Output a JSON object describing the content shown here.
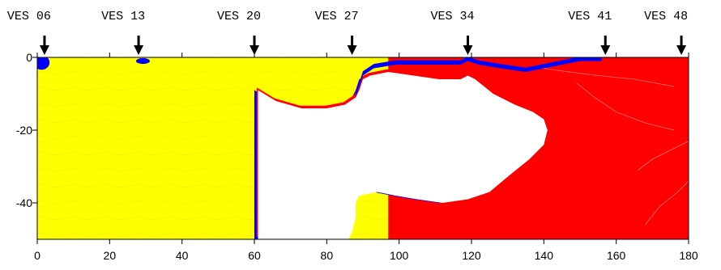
{
  "chart_data": {
    "type": "heatmap",
    "title": "",
    "xlabel": "",
    "ylabel": "",
    "xlim": [
      0,
      180
    ],
    "ylim": [
      -50,
      0
    ],
    "x_ticks": [
      0,
      20,
      40,
      60,
      80,
      100,
      120,
      140,
      160,
      180
    ],
    "y_ticks": [
      0,
      -20,
      -40
    ],
    "grid": false,
    "colors": {
      "low": "#ffff00",
      "boundary": "#0000ff",
      "high": "#ff0000",
      "blank": "#ffffff"
    },
    "soundings": [
      {
        "label": "VES 06",
        "x": 2
      },
      {
        "label": "VES 13",
        "x": 28
      },
      {
        "label": "VES 20",
        "x": 60
      },
      {
        "label": "VES 27",
        "x": 87
      },
      {
        "label": "VES 34",
        "x": 119
      },
      {
        "label": "VES 41",
        "x": 157
      },
      {
        "label": "VES 48",
        "x": 178
      }
    ],
    "zones": {
      "yellow_extent_x": [
        0,
        97
      ],
      "white_body_polygon": [
        [
          61,
          -50
        ],
        [
          61,
          -9
        ],
        [
          66,
          -12
        ],
        [
          73,
          -14
        ],
        [
          80,
          -14
        ],
        [
          85,
          -13
        ],
        [
          88,
          -11
        ],
        [
          89,
          -9
        ],
        [
          90,
          -6
        ],
        [
          92,
          -5
        ],
        [
          97,
          -4
        ],
        [
          104,
          -5
        ],
        [
          111,
          -6
        ],
        [
          117,
          -6
        ],
        [
          119,
          -5
        ],
        [
          121,
          -6
        ],
        [
          126,
          -10
        ],
        [
          132,
          -13
        ],
        [
          137,
          -15
        ],
        [
          140,
          -17
        ],
        [
          141,
          -20
        ],
        [
          140,
          -24
        ],
        [
          136,
          -28
        ],
        [
          131,
          -32
        ],
        [
          125,
          -37
        ],
        [
          119,
          -39
        ],
        [
          112,
          -40
        ],
        [
          105,
          -39
        ],
        [
          99,
          -38
        ],
        [
          94,
          -37
        ],
        [
          89,
          -38
        ],
        [
          88,
          -40
        ],
        [
          88,
          -44
        ],
        [
          87,
          -48
        ],
        [
          86,
          -50
        ]
      ],
      "blue_surface_band": [
        [
          88,
          -11
        ],
        [
          89,
          -8
        ],
        [
          90,
          -5
        ],
        [
          93,
          -3
        ],
        [
          99,
          -2
        ],
        [
          106,
          -2
        ],
        [
          112,
          -2
        ],
        [
          117,
          -2
        ],
        [
          119,
          -1
        ],
        [
          122,
          -2
        ],
        [
          128,
          -3
        ],
        [
          135,
          -4
        ],
        [
          145,
          -2
        ],
        [
          150,
          -1
        ],
        [
          156,
          -1
        ]
      ]
    }
  }
}
